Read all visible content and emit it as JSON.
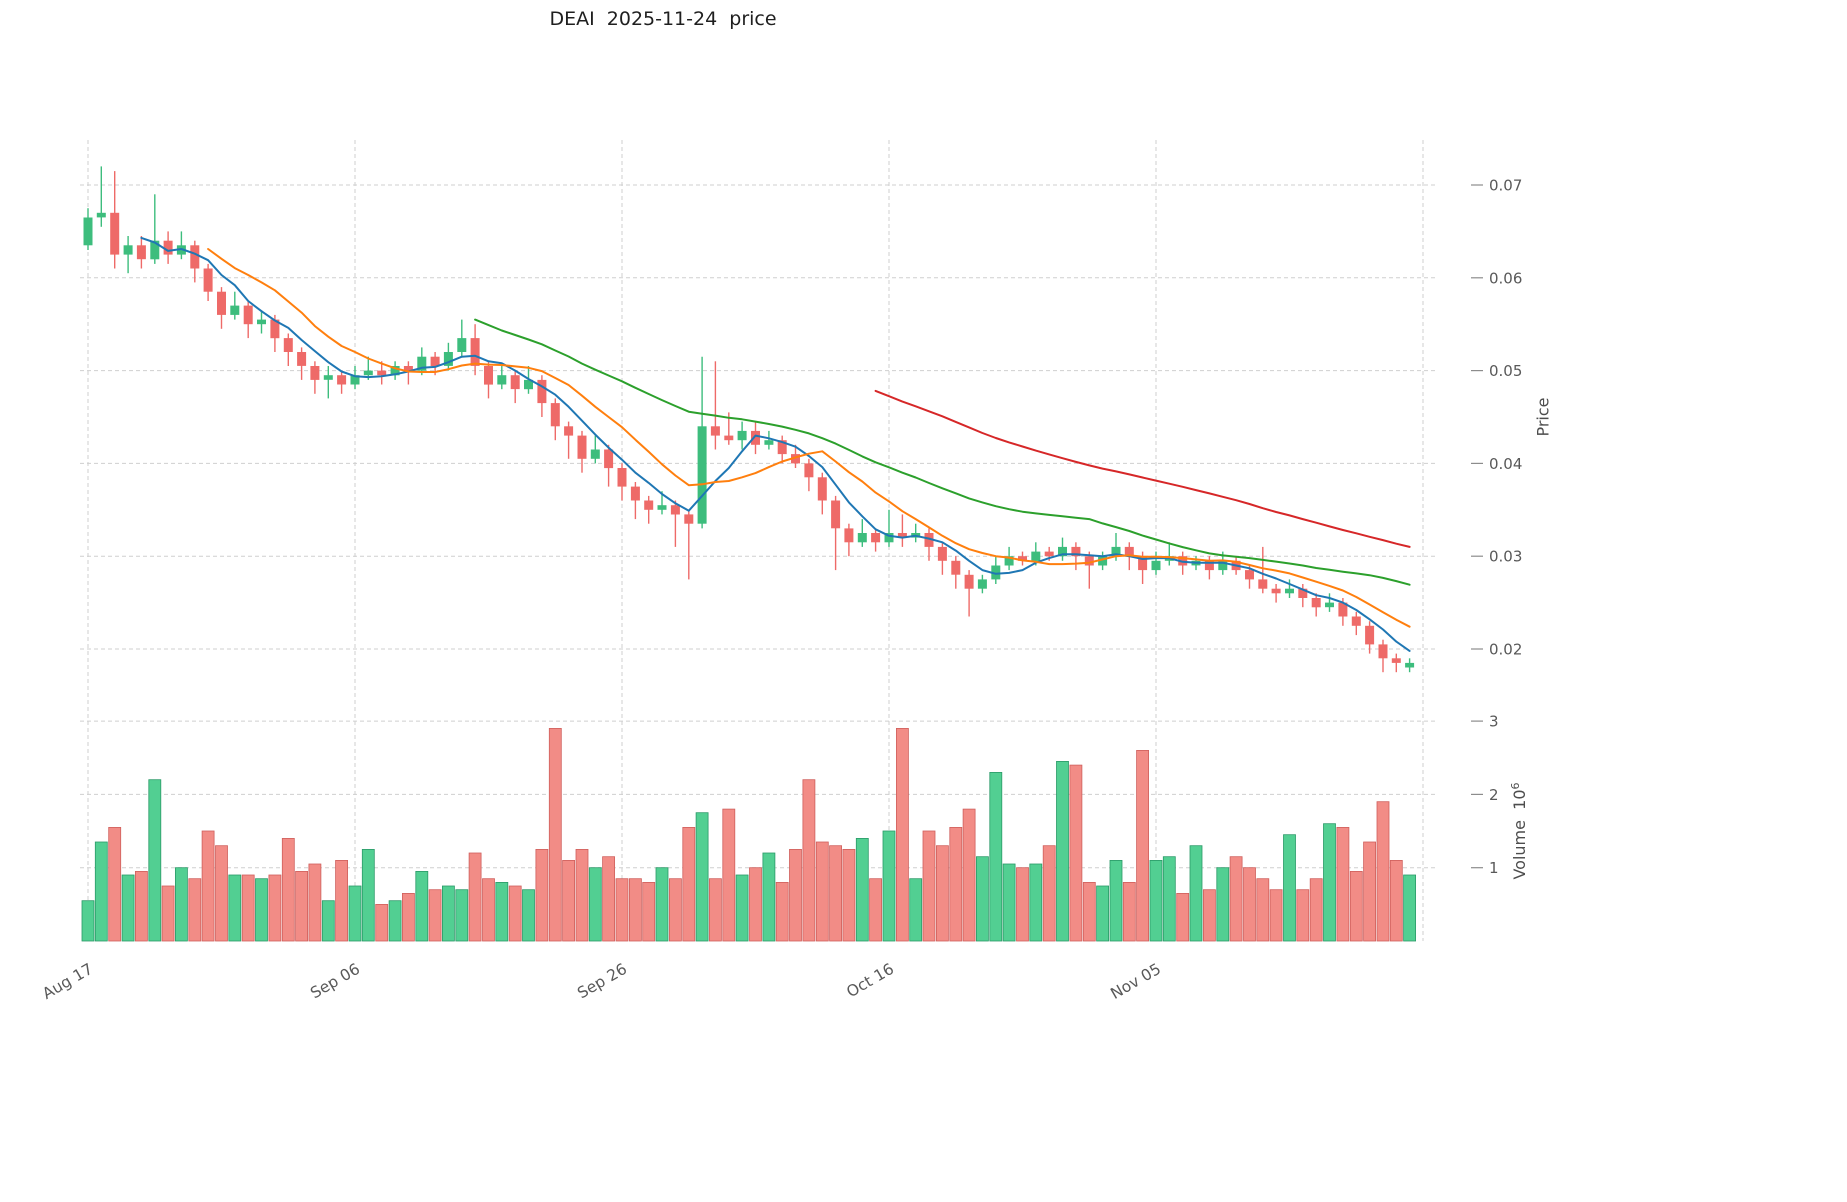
{
  "title": "DEAI  2025-11-24  price",
  "axes": {
    "price_label": "Price",
    "volume_label": "Volume",
    "volume_base": "10",
    "volume_exponent": "6"
  },
  "colors": {
    "up": "#3dbd7d",
    "down": "#ee6a68",
    "volume_up": "#52cf92",
    "volume_up_edge": "#2a9a68",
    "volume_down": "#f28c86",
    "volume_down_edge": "#cf5f5c",
    "grid": "#cfcfcf",
    "tick_text": "#595959"
  },
  "chart_data": {
    "type": "candlestick",
    "title": "DEAI  2025-11-24  price",
    "start_date": "2025-08-17",
    "end_date": "2025-11-24",
    "legend": "none",
    "grid": "dashed",
    "price_axis": {
      "label": "Price",
      "side": "right",
      "ticks": [
        0.02,
        0.03,
        0.04,
        0.05,
        0.06,
        0.07
      ],
      "range": [
        0.0155,
        0.0755
      ]
    },
    "volume_axis": {
      "label": "Volume x10^6",
      "side": "right",
      "ticks": [
        1,
        2,
        3
      ],
      "range": [
        0,
        3.3
      ]
    },
    "x_ticks": [
      {
        "position": 0,
        "label": "Aug 17"
      },
      {
        "position": 20,
        "label": "Sep 06"
      },
      {
        "position": 40,
        "label": "Sep 26"
      },
      {
        "position": 60,
        "label": "Oct 16"
      },
      {
        "position": 80,
        "label": "Nov 05"
      }
    ],
    "x_grid_positions": [
      0,
      20,
      40,
      60,
      80,
      100
    ],
    "moving_averages": [
      {
        "name": "sma5",
        "window": 5,
        "color": "#1f77b4"
      },
      {
        "name": "sma10",
        "window": 10,
        "color": "#ff7f0e"
      },
      {
        "name": "sma30",
        "window": 30,
        "color": "#2ca02c"
      },
      {
        "name": "sma60",
        "window": 60,
        "color": "#d62728"
      }
    ],
    "open": [
      0.0635,
      0.0665,
      0.067,
      0.0625,
      0.0635,
      0.062,
      0.064,
      0.0625,
      0.0635,
      0.061,
      0.0585,
      0.056,
      0.057,
      0.055,
      0.0555,
      0.0535,
      0.052,
      0.0505,
      0.049,
      0.0495,
      0.0485,
      0.0495,
      0.05,
      0.0495,
      0.0505,
      0.05,
      0.0515,
      0.0505,
      0.052,
      0.0535,
      0.0505,
      0.0485,
      0.0495,
      0.048,
      0.049,
      0.0465,
      0.044,
      0.043,
      0.0405,
      0.0415,
      0.0395,
      0.0375,
      0.036,
      0.035,
      0.0355,
      0.0345,
      0.0335,
      0.044,
      0.043,
      0.0425,
      0.0435,
      0.042,
      0.0425,
      0.041,
      0.04,
      0.0385,
      0.036,
      0.033,
      0.0315,
      0.0325,
      0.0315,
      0.0325,
      0.032,
      0.0325,
      0.031,
      0.0295,
      0.028,
      0.0265,
      0.0275,
      0.029,
      0.03,
      0.0295,
      0.0305,
      0.03,
      0.031,
      0.03,
      0.029,
      0.03,
      0.031,
      0.03,
      0.0285,
      0.0295,
      0.03,
      0.029,
      0.0295,
      0.0285,
      0.0295,
      0.0285,
      0.0275,
      0.0265,
      0.026,
      0.0265,
      0.0255,
      0.0245,
      0.025,
      0.0235,
      0.0225,
      0.0205,
      0.019,
      0.018
    ],
    "high": [
      0.0675,
      0.072,
      0.0715,
      0.0645,
      0.0645,
      0.069,
      0.065,
      0.065,
      0.064,
      0.0615,
      0.059,
      0.0585,
      0.0575,
      0.0565,
      0.056,
      0.054,
      0.0525,
      0.051,
      0.0505,
      0.05,
      0.0505,
      0.0515,
      0.051,
      0.051,
      0.051,
      0.0525,
      0.052,
      0.053,
      0.0555,
      0.055,
      0.051,
      0.0505,
      0.05,
      0.0505,
      0.0495,
      0.047,
      0.0445,
      0.0435,
      0.043,
      0.042,
      0.04,
      0.038,
      0.0365,
      0.037,
      0.036,
      0.035,
      0.0515,
      0.051,
      0.0455,
      0.0445,
      0.0445,
      0.0435,
      0.043,
      0.042,
      0.0405,
      0.039,
      0.0365,
      0.0335,
      0.034,
      0.033,
      0.035,
      0.0345,
      0.0335,
      0.033,
      0.0315,
      0.03,
      0.0285,
      0.028,
      0.03,
      0.031,
      0.0305,
      0.0315,
      0.031,
      0.032,
      0.0315,
      0.0305,
      0.0305,
      0.0325,
      0.0315,
      0.0305,
      0.0305,
      0.0315,
      0.0305,
      0.03,
      0.03,
      0.0305,
      0.03,
      0.029,
      0.031,
      0.027,
      0.0275,
      0.027,
      0.026,
      0.026,
      0.0255,
      0.024,
      0.023,
      0.021,
      0.0195,
      0.019
    ],
    "low": [
      0.063,
      0.0655,
      0.061,
      0.0605,
      0.061,
      0.0615,
      0.0615,
      0.062,
      0.0595,
      0.0575,
      0.0545,
      0.0555,
      0.0535,
      0.054,
      0.052,
      0.0505,
      0.049,
      0.0475,
      0.047,
      0.0475,
      0.048,
      0.049,
      0.0485,
      0.049,
      0.0485,
      0.0495,
      0.0495,
      0.05,
      0.0515,
      0.0495,
      0.047,
      0.048,
      0.0465,
      0.0475,
      0.045,
      0.0425,
      0.0405,
      0.039,
      0.04,
      0.0375,
      0.036,
      0.034,
      0.0335,
      0.0345,
      0.031,
      0.0275,
      0.033,
      0.0415,
      0.042,
      0.0415,
      0.041,
      0.0415,
      0.04,
      0.0395,
      0.037,
      0.0345,
      0.0285,
      0.03,
      0.031,
      0.0305,
      0.031,
      0.031,
      0.0315,
      0.0295,
      0.028,
      0.0265,
      0.0235,
      0.026,
      0.027,
      0.0285,
      0.029,
      0.029,
      0.0295,
      0.0295,
      0.0285,
      0.0265,
      0.0285,
      0.0295,
      0.0285,
      0.027,
      0.028,
      0.029,
      0.028,
      0.0285,
      0.0275,
      0.028,
      0.028,
      0.0265,
      0.026,
      0.025,
      0.0255,
      0.0245,
      0.0235,
      0.024,
      0.0225,
      0.0215,
      0.0195,
      0.0175,
      0.0175,
      0.0175
    ],
    "close": [
      0.0665,
      0.067,
      0.0625,
      0.0635,
      0.062,
      0.064,
      0.0625,
      0.0635,
      0.061,
      0.0585,
      0.056,
      0.057,
      0.055,
      0.0555,
      0.0535,
      0.052,
      0.0505,
      0.049,
      0.0495,
      0.0485,
      0.0495,
      0.05,
      0.0495,
      0.0505,
      0.05,
      0.0515,
      0.0505,
      0.052,
      0.0535,
      0.0505,
      0.0485,
      0.0495,
      0.048,
      0.049,
      0.0465,
      0.044,
      0.043,
      0.0405,
      0.0415,
      0.0395,
      0.0375,
      0.036,
      0.035,
      0.0355,
      0.0345,
      0.0335,
      0.044,
      0.043,
      0.0425,
      0.0435,
      0.042,
      0.0425,
      0.041,
      0.04,
      0.0385,
      0.036,
      0.033,
      0.0315,
      0.0325,
      0.0315,
      0.0325,
      0.032,
      0.0325,
      0.031,
      0.0295,
      0.028,
      0.0265,
      0.0275,
      0.029,
      0.03,
      0.0295,
      0.0305,
      0.03,
      0.031,
      0.03,
      0.029,
      0.03,
      0.031,
      0.03,
      0.0285,
      0.0295,
      0.03,
      0.029,
      0.0295,
      0.0285,
      0.0295,
      0.0285,
      0.0275,
      0.0265,
      0.026,
      0.0265,
      0.0255,
      0.0245,
      0.025,
      0.0235,
      0.0225,
      0.0205,
      0.019,
      0.0185,
      0.0185
    ],
    "volume_millions": [
      0.55,
      1.35,
      1.55,
      0.9,
      0.95,
      2.2,
      0.75,
      1.0,
      0.85,
      1.5,
      1.3,
      0.9,
      0.9,
      0.85,
      0.9,
      1.4,
      0.95,
      1.05,
      0.55,
      1.1,
      0.75,
      1.25,
      0.5,
      0.55,
      0.65,
      0.95,
      0.7,
      0.75,
      0.7,
      1.2,
      0.85,
      0.8,
      0.75,
      0.7,
      1.25,
      2.9,
      1.1,
      1.25,
      1.0,
      1.15,
      0.85,
      0.85,
      0.8,
      1.0,
      0.85,
      1.55,
      1.75,
      0.85,
      1.8,
      0.9,
      1.0,
      1.2,
      0.8,
      1.25,
      2.2,
      1.35,
      1.3,
      1.25,
      1.4,
      0.85,
      1.5,
      2.9,
      0.85,
      1.5,
      1.3,
      1.55,
      1.8,
      1.15,
      2.3,
      1.05,
      1.0,
      1.05,
      1.3,
      2.45,
      2.4,
      0.8,
      0.75,
      1.1,
      0.8,
      2.6,
      1.1,
      1.15,
      0.65,
      1.3,
      0.7,
      1.0,
      1.15,
      1.0,
      0.85,
      0.7,
      1.45,
      0.7,
      0.85,
      1.6,
      1.55,
      0.95,
      1.35,
      1.9,
      1.1,
      0.9
    ]
  }
}
